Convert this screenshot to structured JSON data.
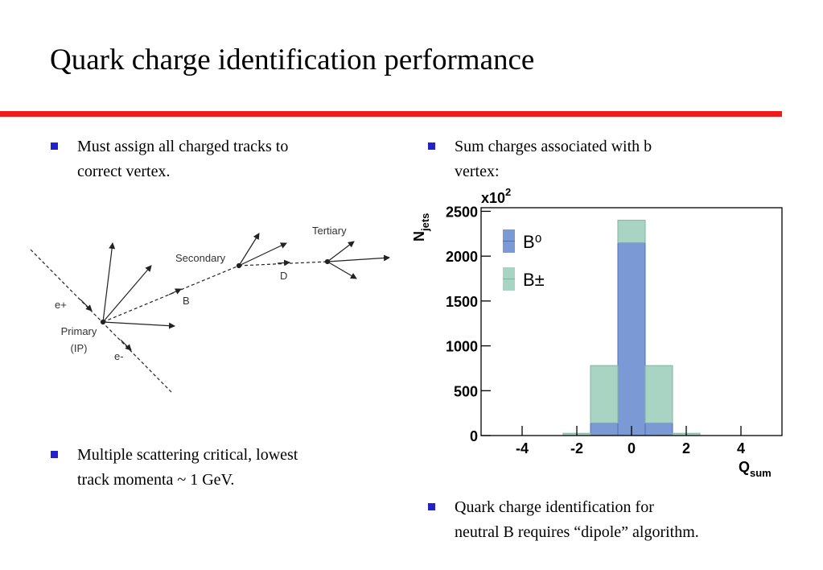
{
  "title": "Quark charge identification performance",
  "bullets_left": [
    [
      "Must assign all charged tracks to",
      "correct vertex."
    ],
    [
      "Multiple scattering critical, lowest",
      "track momenta ~ 1 GeV."
    ]
  ],
  "bullets_right": [
    [
      "Sum charges associated with b",
      "vertex:"
    ],
    [
      "Quark charge identification for",
      "neutral B requires “dipole” algorithm."
    ]
  ],
  "diagram": {
    "labels": [
      "Tertiary",
      "Secondary",
      "D",
      "B",
      "e+",
      "Primary",
      "(IP)",
      "e-"
    ]
  },
  "chart_data": {
    "type": "histogram",
    "bins": [
      -5.5,
      -4.5,
      -3.5,
      -2.5,
      -1.5,
      -0.5,
      0.5,
      1.5,
      2.5,
      3.5,
      4.5,
      5.5
    ],
    "series": [
      {
        "name": "B⁰",
        "color": "#7b9ad5",
        "values": [
          0,
          0,
          0,
          0,
          140,
          2150,
          140,
          0,
          0,
          0,
          0
        ]
      },
      {
        "name": "B±",
        "color": "#a9d4c4",
        "values": [
          0,
          0,
          0,
          25,
          640,
          250,
          640,
          25,
          0,
          0,
          0
        ]
      }
    ],
    "stacked": true,
    "xlim": [
      -5.5,
      5.5
    ],
    "xticks": [
      -4,
      -2,
      0,
      2,
      4
    ],
    "ylim": [
      0,
      2540
    ],
    "yticks": [
      0,
      500,
      1000,
      1500,
      2000,
      2500
    ],
    "xlabel": "Q",
    "xlabel_subscript": "sum",
    "ylabel": "N",
    "ylabel_subscript": "jets",
    "y_multiplier": "x10",
    "y_multiplier_exponent": "2"
  }
}
